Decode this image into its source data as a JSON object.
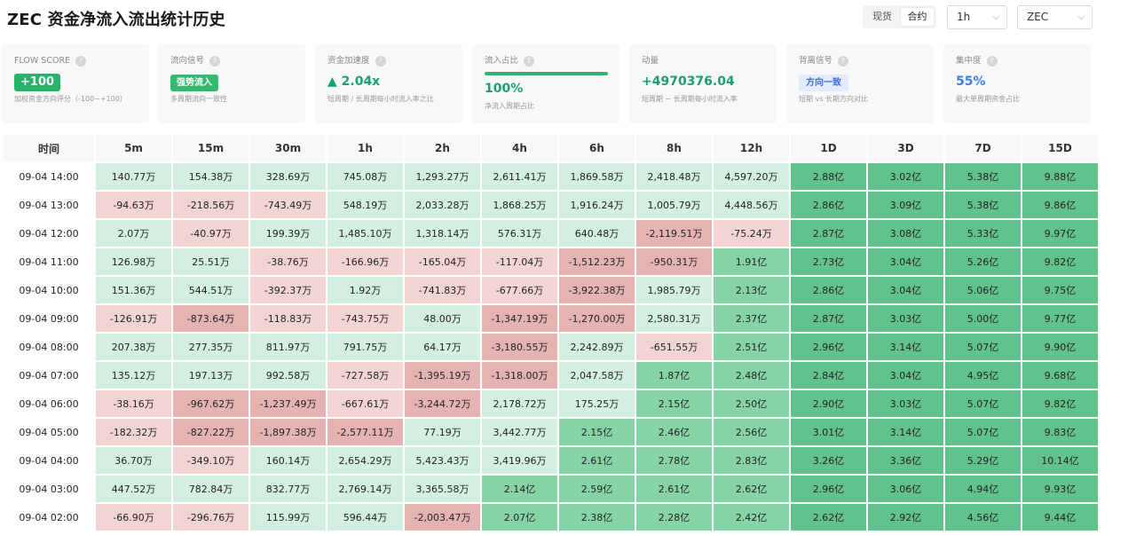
{
  "header": {
    "title": "ZEC 资金净流入流出统计历史",
    "market_toggle": {
      "spot": "现货",
      "contract": "合约",
      "selected": "合约"
    },
    "interval_select": "1h",
    "symbol_select": "ZEC"
  },
  "cards": {
    "flow_score": {
      "title": "FLOW SCORE",
      "value": "+100",
      "desc": "加权资金方向评分（-100~+100）"
    },
    "flow_signal": {
      "title": "流向信号",
      "value": "强势流入",
      "desc": "多周期流向一致性"
    },
    "acceleration": {
      "title": "资金加速度",
      "value": "▲ 2.04x",
      "desc": "短周期 / 长周期每小时流入率之比"
    },
    "inflow_share": {
      "title": "流入占比",
      "value": "100%",
      "progress": 1.0,
      "desc": "净流入周期占比"
    },
    "momentum": {
      "title": "动量",
      "value": "+4970376.04",
      "desc": "短周期 − 长周期每小时流入率"
    },
    "divergence": {
      "title": "背离信号",
      "value": "方向一致",
      "desc": "短期 vs 长期方向对比"
    },
    "concentration": {
      "title": "集中度",
      "value": "55%",
      "desc": "最大单周期资金占比"
    }
  },
  "colors": {
    "pos_light": "#d3efe0",
    "pos_mid": "#86d3a6",
    "pos_strong": "#62c28b",
    "neg_light": "#f3d4d4",
    "neg_mid": "#e6b3b3"
  },
  "table": {
    "columns": [
      "时间",
      "5m",
      "15m",
      "30m",
      "1h",
      "2h",
      "4h",
      "6h",
      "8h",
      "12h",
      "1D",
      "3D",
      "7D",
      "15D"
    ],
    "rows": [
      {
        "time": "09-04 14:00",
        "values": [
          "140.77万",
          "154.38万",
          "328.69万",
          "745.08万",
          "1,293.27万",
          "2,611.41万",
          "1,869.58万",
          "2,418.48万",
          "4,597.20万",
          "2.88亿",
          "3.02亿",
          "5.38亿",
          "9.88亿"
        ]
      },
      {
        "time": "09-04 13:00",
        "values": [
          "-94.63万",
          "-218.56万",
          "-743.49万",
          "548.19万",
          "2,033.28万",
          "1,868.25万",
          "1,916.24万",
          "1,005.79万",
          "4,448.56万",
          "2.86亿",
          "3.09亿",
          "5.38亿",
          "9.86亿"
        ]
      },
      {
        "time": "09-04 12:00",
        "values": [
          "2.07万",
          "-40.97万",
          "199.39万",
          "1,485.10万",
          "1,318.14万",
          "576.31万",
          "640.48万",
          "-2,119.51万",
          "-75.24万",
          "2.87亿",
          "3.08亿",
          "5.33亿",
          "9.97亿"
        ]
      },
      {
        "time": "09-04 11:00",
        "values": [
          "126.98万",
          "25.51万",
          "-38.76万",
          "-166.96万",
          "-165.04万",
          "-117.04万",
          "-1,512.23万",
          "-950.31万",
          "1.91亿",
          "2.73亿",
          "3.04亿",
          "5.26亿",
          "9.82亿"
        ]
      },
      {
        "time": "09-04 10:00",
        "values": [
          "151.36万",
          "544.51万",
          "-392.37万",
          "1.92万",
          "-741.83万",
          "-677.66万",
          "-3,922.38万",
          "1,985.79万",
          "2.13亿",
          "2.86亿",
          "3.04亿",
          "5.06亿",
          "9.75亿"
        ]
      },
      {
        "time": "09-04 09:00",
        "values": [
          "-126.91万",
          "-873.64万",
          "-118.83万",
          "-743.75万",
          "48.00万",
          "-1,347.19万",
          "-1,270.00万",
          "2,580.31万",
          "2.37亿",
          "2.87亿",
          "3.03亿",
          "5.00亿",
          "9.77亿"
        ]
      },
      {
        "time": "09-04 08:00",
        "values": [
          "207.38万",
          "277.35万",
          "811.97万",
          "791.75万",
          "64.17万",
          "-3,180.55万",
          "2,242.89万",
          "-651.55万",
          "2.51亿",
          "2.96亿",
          "3.14亿",
          "5.07亿",
          "9.90亿"
        ]
      },
      {
        "time": "09-04 07:00",
        "values": [
          "135.12万",
          "197.13万",
          "992.58万",
          "-727.58万",
          "-1,395.19万",
          "-1,318.00万",
          "2,047.58万",
          "1.87亿",
          "2.48亿",
          "2.84亿",
          "3.04亿",
          "4.95亿",
          "9.68亿"
        ]
      },
      {
        "time": "09-04 06:00",
        "values": [
          "-38.16万",
          "-967.62万",
          "-1,237.49万",
          "-667.61万",
          "-3,244.72万",
          "2,178.72万",
          "175.25万",
          "2.15亿",
          "2.50亿",
          "2.90亿",
          "3.03亿",
          "5.07亿",
          "9.82亿"
        ]
      },
      {
        "time": "09-04 05:00",
        "values": [
          "-182.32万",
          "-827.22万",
          "-1,897.38万",
          "-2,577.11万",
          "77.19万",
          "3,442.77万",
          "2.15亿",
          "2.46亿",
          "2.56亿",
          "3.01亿",
          "3.14亿",
          "5.07亿",
          "9.83亿"
        ]
      },
      {
        "time": "09-04 04:00",
        "values": [
          "36.70万",
          "-349.10万",
          "160.14万",
          "2,654.29万",
          "5,423.43万",
          "3,419.96万",
          "2.61亿",
          "2.78亿",
          "2.83亿",
          "3.26亿",
          "3.36亿",
          "5.29亿",
          "10.14亿"
        ]
      },
      {
        "time": "09-04 03:00",
        "values": [
          "447.52万",
          "782.84万",
          "832.77万",
          "2,769.14万",
          "3,365.58万",
          "2.14亿",
          "2.59亿",
          "2.61亿",
          "2.62亿",
          "2.96亿",
          "3.06亿",
          "4.94亿",
          "9.93亿"
        ]
      },
      {
        "time": "09-04 02:00",
        "values": [
          "-66.90万",
          "-296.76万",
          "115.99万",
          "596.44万",
          "-2,003.47万",
          "2.07亿",
          "2.38亿",
          "2.28亿",
          "2.42亿",
          "2.62亿",
          "2.92亿",
          "4.56亿",
          "9.44亿"
        ]
      }
    ]
  }
}
